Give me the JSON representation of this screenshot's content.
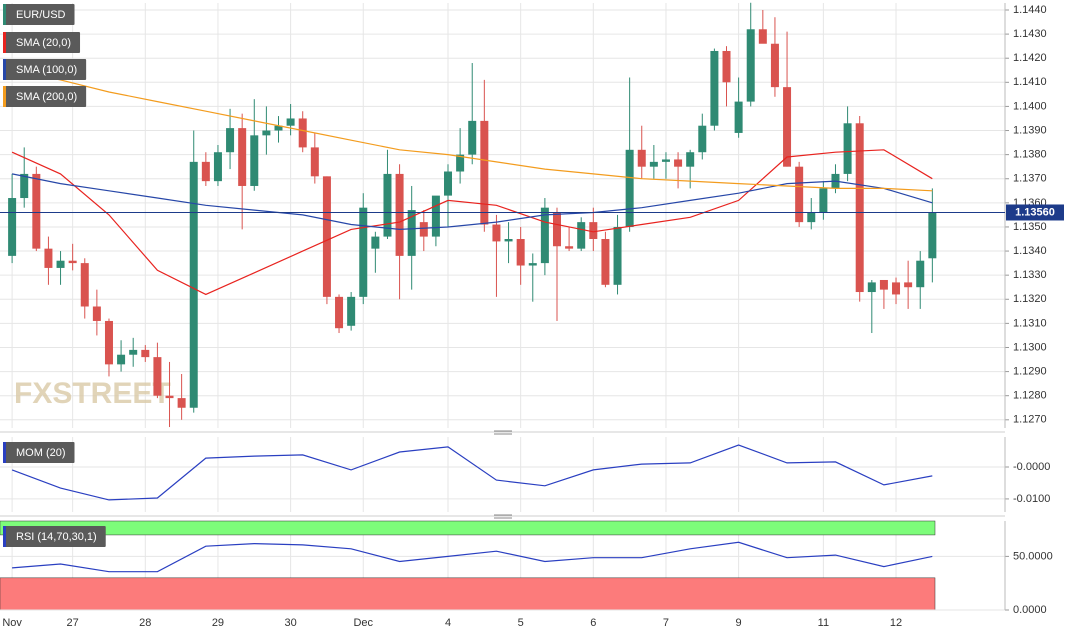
{
  "chart_data": [
    {
      "type": "candlestick",
      "title": "EUR/USD",
      "watermark": "FXSTREET",
      "up_color": "#2f8a73",
      "down_color": "#d9534f",
      "grid": true,
      "open": [
        1.1338,
        1.1362,
        1.1372,
        1.1341,
        1.1333,
        1.1336,
        1.1335,
        1.1317,
        1.1311,
        1.1293,
        1.1297,
        1.1299,
        1.1296,
        1.128,
        1.1279,
        1.1275,
        1.1377,
        1.1369,
        1.1381,
        1.1391,
        1.1367,
        1.1388,
        1.139,
        1.1392,
        1.1395,
        1.1383,
        1.1371,
        1.1321,
        1.1309,
        1.1321,
        1.1341,
        1.1346,
        1.1372,
        1.1338,
        1.1352,
        1.1346,
        1.1363,
        1.1373,
        1.138,
        1.1394,
        1.1351,
        1.1344,
        1.1345,
        1.1334,
        1.1335,
        1.1356,
        1.1342,
        1.1341,
        1.1352,
        1.1345,
        1.1326,
        1.135,
        1.1382,
        1.1375,
        1.1377,
        1.1378,
        1.1375,
        1.1381,
        1.1392,
        1.1423,
        1.1389,
        1.1402,
        1.1432,
        1.1426,
        1.1408,
        1.1375,
        1.1352,
        1.1356,
        1.1366,
        1.1372,
        1.1393,
        1.1323,
        1.1328,
        1.1327,
        1.1327,
        1.1325,
        1.1337
      ],
      "high": [
        1.1372,
        1.1383,
        1.1375,
        1.1346,
        1.134,
        1.1343,
        1.1337,
        1.1324,
        1.1312,
        1.1303,
        1.1304,
        1.1301,
        1.1302,
        1.1294,
        1.1289,
        1.139,
        1.1381,
        1.1384,
        1.1399,
        1.1397,
        1.1403,
        1.14,
        1.1396,
        1.1401,
        1.1398,
        1.1389,
        1.1371,
        1.1322,
        1.1323,
        1.1364,
        1.1348,
        1.1382,
        1.1376,
        1.1367,
        1.1357,
        1.1362,
        1.1376,
        1.1391,
        1.1418,
        1.1411,
        1.1355,
        1.1352,
        1.135,
        1.1339,
        1.1362,
        1.1358,
        1.135,
        1.1354,
        1.1358,
        1.1348,
        1.1355,
        1.1412,
        1.1392,
        1.1384,
        1.1381,
        1.1381,
        1.1382,
        1.1397,
        1.1424,
        1.1425,
        1.1412,
        1.1443,
        1.144,
        1.1437,
        1.1431,
        1.1377,
        1.1362,
        1.1369,
        1.1376,
        1.14,
        1.1396,
        1.1328,
        1.1328,
        1.1329,
        1.1336,
        1.134,
        1.1366
      ],
      "low": [
        1.1335,
        1.1358,
        1.134,
        1.1326,
        1.1326,
        1.1332,
        1.1312,
        1.1305,
        1.1288,
        1.129,
        1.1292,
        1.1294,
        1.1279,
        1.1267,
        1.127,
        1.1273,
        1.1367,
        1.1367,
        1.1374,
        1.1349,
        1.1365,
        1.138,
        1.1385,
        1.1388,
        1.1381,
        1.1368,
        1.1318,
        1.1306,
        1.1307,
        1.1318,
        1.1331,
        1.1345,
        1.132,
        1.1324,
        1.134,
        1.1342,
        1.135,
        1.1368,
        1.1376,
        1.1348,
        1.1321,
        1.1335,
        1.1326,
        1.1319,
        1.133,
        1.1311,
        1.134,
        1.134,
        1.134,
        1.1325,
        1.1322,
        1.1348,
        1.137,
        1.137,
        1.137,
        1.1366,
        1.1366,
        1.1378,
        1.139,
        1.14,
        1.1387,
        1.14,
        1.1427,
        1.1404,
        1.1375,
        1.135,
        1.1349,
        1.1353,
        1.1364,
        1.1369,
        1.1319,
        1.1306,
        1.1316,
        1.1318,
        1.1316,
        1.1316,
        1.1327
      ],
      "close": [
        1.1362,
        1.1372,
        1.1341,
        1.1333,
        1.1336,
        1.1335,
        1.1317,
        1.1311,
        1.1293,
        1.1297,
        1.1299,
        1.1296,
        1.128,
        1.1279,
        1.1275,
        1.1377,
        1.1369,
        1.1381,
        1.1391,
        1.1367,
        1.1388,
        1.139,
        1.1392,
        1.1395,
        1.1383,
        1.1371,
        1.1321,
        1.1308,
        1.1321,
        1.1358,
        1.1346,
        1.1372,
        1.1338,
        1.1357,
        1.1346,
        1.1363,
        1.1373,
        1.138,
        1.1394,
        1.1351,
        1.1344,
        1.1345,
        1.1334,
        1.1335,
        1.1358,
        1.1342,
        1.1341,
        1.1352,
        1.1345,
        1.1326,
        1.135,
        1.1382,
        1.1375,
        1.1377,
        1.1378,
        1.1375,
        1.1381,
        1.1392,
        1.1423,
        1.141,
        1.1402,
        1.1432,
        1.1426,
        1.1408,
        1.1375,
        1.1352,
        1.1356,
        1.1366,
        1.1372,
        1.1393,
        1.1323,
        1.1327,
        1.1324,
        1.1322,
        1.1325,
        1.1336,
        1.1356
      ],
      "overlays": [
        {
          "name": "SMA (20,0)",
          "color": "#e8231f",
          "x": [
            0,
            4,
            8,
            12,
            16,
            20,
            24,
            28,
            32,
            36,
            40,
            44,
            48,
            52,
            56,
            60,
            64,
            68,
            72,
            76
          ],
          "values": [
            1.1381,
            1.1372,
            1.1355,
            1.1332,
            1.1322,
            1.1331,
            1.134,
            1.1349,
            1.1352,
            1.1361,
            1.1359,
            1.1352,
            1.1348,
            1.1351,
            1.1354,
            1.1361,
            1.1379,
            1.1381,
            1.1382,
            1.137
          ]
        },
        {
          "name": "SMA (100,0)",
          "color": "#2747a8",
          "x": [
            0,
            4,
            8,
            12,
            16,
            20,
            24,
            28,
            32,
            36,
            40,
            44,
            48,
            52,
            56,
            60,
            64,
            68,
            72,
            76
          ],
          "values": [
            1.1372,
            1.1368,
            1.1365,
            1.1362,
            1.1359,
            1.1357,
            1.1355,
            1.1351,
            1.1349,
            1.135,
            1.1352,
            1.1355,
            1.1356,
            1.1358,
            1.1361,
            1.1364,
            1.1368,
            1.1369,
            1.1366,
            1.136
          ]
        },
        {
          "name": "SMA (200,0)",
          "color": "#f39c1e",
          "x": [
            0,
            4,
            8,
            12,
            16,
            20,
            24,
            28,
            32,
            36,
            40,
            44,
            48,
            52,
            56,
            60,
            64,
            68,
            72,
            76
          ],
          "values": [
            1.1415,
            1.1411,
            1.1406,
            1.1402,
            1.1398,
            1.1394,
            1.139,
            1.1386,
            1.1382,
            1.138,
            1.1377,
            1.1374,
            1.1372,
            1.137,
            1.1369,
            1.1368,
            1.1367,
            1.1366,
            1.1366,
            1.1365
          ]
        }
      ],
      "last_price": {
        "value": 1.1356,
        "label": "1.13560"
      },
      "xlim": [
        -1,
        82
      ],
      "ylim": [
        1.12666,
        1.14429
      ],
      "yticks": [
        {
          "value": 1.144,
          "label": "1.1440"
        },
        {
          "value": 1.143,
          "label": "1.1430"
        },
        {
          "value": 1.142,
          "label": "1.1420"
        },
        {
          "value": 1.141,
          "label": "1.1410"
        },
        {
          "value": 1.14,
          "label": "1.1400"
        },
        {
          "value": 1.139,
          "label": "1.1390"
        },
        {
          "value": 1.138,
          "label": "1.1380"
        },
        {
          "value": 1.137,
          "label": "1.1370"
        },
        {
          "value": 1.136,
          "label": "1.1360"
        },
        {
          "value": 1.135,
          "label": "1.1350"
        },
        {
          "value": 1.134,
          "label": "1.1340"
        },
        {
          "value": 1.133,
          "label": "1.1330"
        },
        {
          "value": 1.132,
          "label": "1.1320"
        },
        {
          "value": 1.131,
          "label": "1.1310"
        },
        {
          "value": 1.13,
          "label": "1.1300"
        },
        {
          "value": 1.129,
          "label": "1.1290"
        },
        {
          "value": 1.128,
          "label": "1.1280"
        },
        {
          "value": 1.127,
          "label": "1.1270"
        }
      ],
      "xticks": [
        {
          "value": 0,
          "label": "Nov"
        },
        {
          "value": 5,
          "label": "27"
        },
        {
          "value": 11,
          "label": "28"
        },
        {
          "value": 17,
          "label": "29"
        },
        {
          "value": 23,
          "label": "30"
        },
        {
          "value": 29,
          "label": "Dec"
        },
        {
          "value": 36,
          "label": "4"
        },
        {
          "value": 42,
          "label": "5"
        },
        {
          "value": 48,
          "label": "6"
        },
        {
          "value": 54,
          "label": "7"
        },
        {
          "value": 60,
          "label": "9"
        },
        {
          "value": 67,
          "label": "11"
        },
        {
          "value": 73,
          "label": "12"
        }
      ]
    },
    {
      "type": "line",
      "title": "MOM (20)",
      "color": "#2a3fc1",
      "grid": true,
      "xlim": [
        -1,
        82
      ],
      "x": [
        0,
        4,
        8,
        12,
        16,
        20,
        24,
        28,
        32,
        36,
        40,
        44,
        48,
        52,
        56,
        60,
        64,
        68,
        72,
        76
      ],
      "values": [
        -0.0009,
        -0.0066,
        -0.0103,
        -0.0097,
        0.0028,
        0.0034,
        0.0038,
        -0.0009,
        0.0047,
        0.0063,
        -0.0041,
        -0.0059,
        -0.0009,
        0.0009,
        0.0013,
        0.0069,
        0.0013,
        0.0016,
        -0.0056,
        -0.0028
      ],
      "ylim": [
        -0.0141,
        0.0094
      ],
      "yticks": [
        {
          "value": 0,
          "label": "-0.0000"
        },
        {
          "value": -0.01,
          "label": "-0.0100"
        }
      ]
    },
    {
      "type": "line",
      "title": "RSI (14,70,30,1)",
      "color": "#2a3fc1",
      "grid": true,
      "xlim": [
        -1,
        82
      ],
      "overbought": 70,
      "oversold": 30,
      "overbought_color": "#7dfc7a",
      "oversold_color": "#fc7b7b",
      "x": [
        0,
        4,
        8,
        12,
        16,
        20,
        24,
        28,
        32,
        36,
        40,
        44,
        48,
        52,
        56,
        60,
        64,
        68,
        72,
        76
      ],
      "values": [
        39.3,
        42.9,
        35.7,
        35.7,
        59.5,
        61.9,
        60.7,
        57.1,
        45.2,
        50,
        54.8,
        45.2,
        48.8,
        48.8,
        57.1,
        63.1,
        48.8,
        51.2,
        40.5,
        50
      ],
      "ylim": [
        0,
        83
      ],
      "yticks": [
        {
          "value": 50,
          "label": "50.0000"
        },
        {
          "value": 0,
          "label": "0.0000"
        }
      ]
    }
  ]
}
